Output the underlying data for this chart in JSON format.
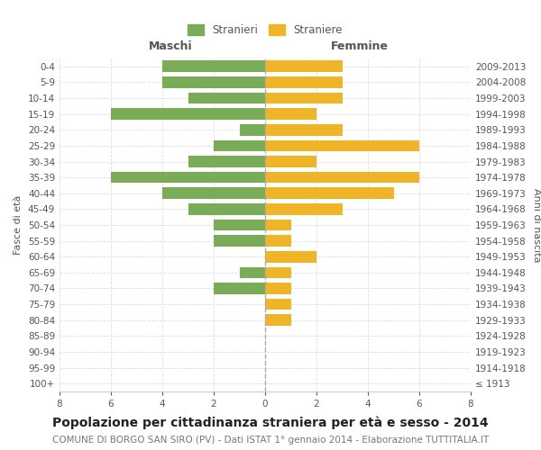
{
  "age_groups": [
    "100+",
    "95-99",
    "90-94",
    "85-89",
    "80-84",
    "75-79",
    "70-74",
    "65-69",
    "60-64",
    "55-59",
    "50-54",
    "45-49",
    "40-44",
    "35-39",
    "30-34",
    "25-29",
    "20-24",
    "15-19",
    "10-14",
    "5-9",
    "0-4"
  ],
  "birth_years": [
    "≤ 1913",
    "1914-1918",
    "1919-1923",
    "1924-1928",
    "1929-1933",
    "1934-1938",
    "1939-1943",
    "1944-1948",
    "1949-1953",
    "1954-1958",
    "1959-1963",
    "1964-1968",
    "1969-1973",
    "1974-1978",
    "1979-1983",
    "1984-1988",
    "1989-1993",
    "1994-1998",
    "1999-2003",
    "2004-2008",
    "2009-2013"
  ],
  "males": [
    0,
    0,
    0,
    0,
    0,
    0,
    2,
    1,
    0,
    2,
    2,
    3,
    4,
    6,
    3,
    2,
    1,
    6,
    3,
    4,
    4
  ],
  "females": [
    0,
    0,
    0,
    0,
    1,
    1,
    1,
    1,
    2,
    1,
    1,
    3,
    5,
    6,
    2,
    6,
    3,
    2,
    3,
    3,
    3
  ],
  "male_color": "#7aab57",
  "female_color": "#f0b429",
  "grid_color": "#dddddd",
  "center_line_color": "#aaaaaa",
  "bg_color": "#ffffff",
  "title": "Popolazione per cittadinanza straniera per età e sesso - 2014",
  "subtitle": "COMUNE DI BORGO SAN SIRO (PV) - Dati ISTAT 1° gennaio 2014 - Elaborazione TUTTITALIA.IT",
  "xlabel_left": "Maschi",
  "xlabel_right": "Femmine",
  "ylabel_left": "Fasce di età",
  "ylabel_right": "Anni di nascita",
  "legend_male": "Stranieri",
  "legend_female": "Straniere",
  "xlim": 8,
  "title_fontsize": 10,
  "subtitle_fontsize": 7.5,
  "header_fontsize": 9,
  "label_fontsize": 8,
  "tick_fontsize": 7.5
}
